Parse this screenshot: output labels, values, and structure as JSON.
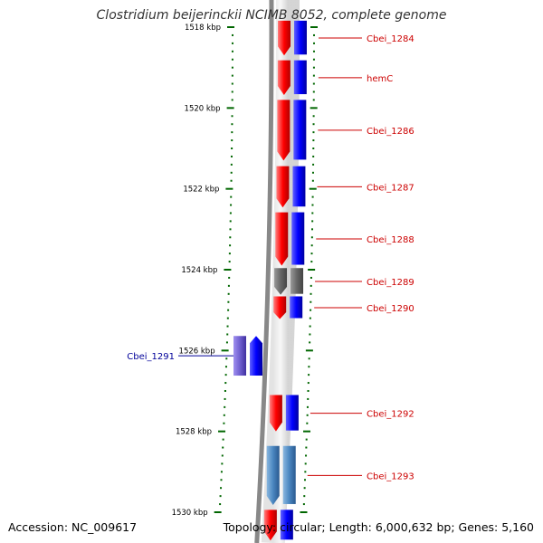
{
  "title": "Clostridium beijerinckii NCIMB 8052, complete genome",
  "footer": {
    "accession": "Accession: NC_009617",
    "topology": "Topology: circular; Length: 6,000,632 bp; Genes: 5,160"
  },
  "ruler": {
    "unit": "kbp",
    "ticks": [
      {
        "kbp": 1518,
        "label": "1518 kbp"
      },
      {
        "kbp": 1520,
        "label": "1520 kbp"
      },
      {
        "kbp": 1522,
        "label": "1522 kbp"
      },
      {
        "kbp": 1524,
        "label": "1524 kbp"
      },
      {
        "kbp": 1526,
        "label": "1526 kbp"
      },
      {
        "kbp": 1528,
        "label": "1528 kbp"
      },
      {
        "kbp": 1530,
        "label": "1530 kbp"
      }
    ]
  },
  "colors": {
    "cds": "#ff0000",
    "gene": "#0000ff",
    "other": "#666666",
    "reverse_gene": "#7060d0",
    "rna": "#4a86c0",
    "label_forward": "#cc0000",
    "label_reverse": "#000099",
    "tick": "#006600",
    "backbone": "#888888"
  },
  "features": [
    {
      "start": 1517.84,
      "end": 1518.7,
      "strand": 1,
      "color": "cds",
      "label": "Cbei_1284"
    },
    {
      "start": 1518.82,
      "end": 1519.68,
      "strand": 1,
      "color": "cds",
      "label": "hemC"
    },
    {
      "start": 1519.8,
      "end": 1521.3,
      "strand": 1,
      "color": "cds",
      "label": "Cbei_1286"
    },
    {
      "start": 1521.44,
      "end": 1522.46,
      "strand": 1,
      "color": "cds",
      "label": "Cbei_1287"
    },
    {
      "start": 1522.58,
      "end": 1523.9,
      "strand": 1,
      "color": "cds",
      "label": "Cbei_1288"
    },
    {
      "start": 1523.96,
      "end": 1524.62,
      "strand": 1,
      "color": "other",
      "label": "Cbei_1289"
    },
    {
      "start": 1524.66,
      "end": 1525.22,
      "strand": 1,
      "color": "cds",
      "label": "Cbei_1290"
    },
    {
      "start": 1525.64,
      "end": 1526.62,
      "strand": -1,
      "color": "cds",
      "label": "Cbei_1291"
    },
    {
      "start": 1527.1,
      "end": 1528.0,
      "strand": 1,
      "color": "cds",
      "label": "Cbei_1292"
    },
    {
      "start": 1528.36,
      "end": 1529.82,
      "strand": 1,
      "color": "rna",
      "label": "Cbei_1293"
    },
    {
      "start": 1529.94,
      "end": 1530.7,
      "strand": 1,
      "color": "cds",
      "label": ""
    }
  ]
}
